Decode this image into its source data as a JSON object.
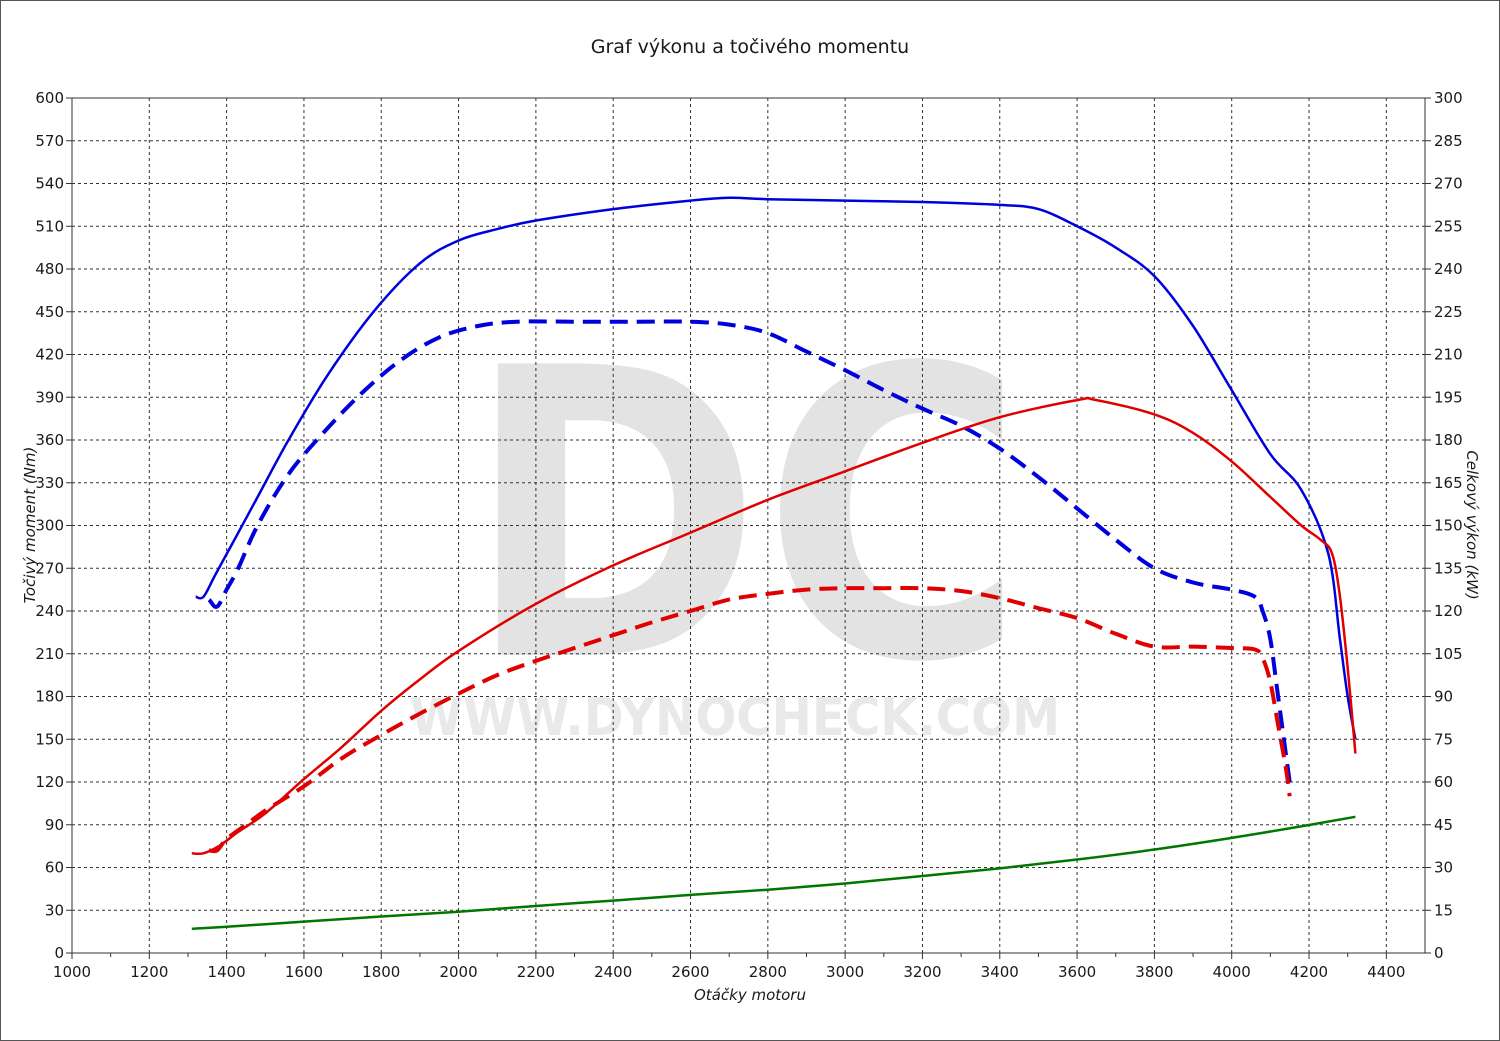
{
  "chart_data": {
    "type": "line",
    "title": "Graf výkonu a točivého momentu",
    "xlabel": "Otáčky motoru",
    "ylabel_left": "Točivý moment (Nm)",
    "ylabel_right": "Celkový výkon (kW)",
    "xlim": [
      1000,
      4500
    ],
    "ylim_left": [
      0,
      600
    ],
    "ylim_right": [
      0,
      300
    ],
    "x_ticks": [
      "1000",
      "1200",
      "1400",
      "1600",
      "1800",
      "2000",
      "2200",
      "2400",
      "2600",
      "2800",
      "3000",
      "3200",
      "3400",
      "3600",
      "3800",
      "4000",
      "4200",
      "4400"
    ],
    "y_ticks_left": [
      "0",
      "30",
      "60",
      "90",
      "120",
      "150",
      "180",
      "210",
      "240",
      "270",
      "300",
      "330",
      "360",
      "390",
      "420",
      "450",
      "480",
      "510",
      "540",
      "570",
      "600"
    ],
    "y_ticks_right": [
      "0",
      "15",
      "30",
      "45",
      "60",
      "75",
      "90",
      "105",
      "120",
      "135",
      "150",
      "165",
      "180",
      "195",
      "210",
      "225",
      "240",
      "255",
      "270",
      "285",
      "300"
    ],
    "grid": true,
    "watermark": {
      "letters": "DC",
      "url": "WWW.DYNOCHECK.COM"
    },
    "series": [
      {
        "color": "#0000dd",
        "dash": "solid",
        "axis": "left",
        "x": [
          1320,
          1340,
          1370,
          1420,
          1480,
          1560,
          1660,
          1780,
          1900,
          2000,
          2100,
          2200,
          2400,
          2600,
          2700,
          2800,
          3000,
          3200,
          3400,
          3500,
          3600,
          3700,
          3800,
          3900,
          4000,
          4100,
          4180,
          4250,
          4280,
          4300,
          4320
        ],
        "y": [
          250,
          250,
          265,
          290,
          320,
          360,
          405,
          450,
          484,
          500,
          508,
          514,
          522,
          528,
          530,
          529,
          528,
          527,
          525,
          522,
          510,
          495,
          475,
          440,
          395,
          350,
          325,
          280,
          220,
          180,
          150
        ]
      },
      {
        "color": "#0000dd",
        "dash": "dashed",
        "axis": "left",
        "x": [
          1355,
          1375,
          1400,
          1430,
          1480,
          1560,
          1650,
          1750,
          1850,
          1950,
          2050,
          2150,
          2300,
          2450,
          2600,
          2700,
          2800,
          2900,
          3000,
          3100,
          3200,
          3300,
          3400,
          3500,
          3600,
          3700,
          3800,
          3900,
          4000,
          4060,
          4080,
          4100,
          4120,
          4140,
          4150
        ],
        "y": [
          248,
          243,
          255,
          270,
          300,
          336,
          365,
          393,
          416,
          432,
          440,
          443,
          443,
          443,
          443,
          441,
          435,
          422,
          409,
          395,
          382,
          370,
          354,
          334,
          312,
          290,
          270,
          260,
          255,
          250,
          240,
          220,
          180,
          140,
          120
        ]
      },
      {
        "color": "#e00000",
        "dash": "solid",
        "axis": "left",
        "x": [
          1310,
          1340,
          1380,
          1430,
          1500,
          1600,
          1700,
          1800,
          1900,
          2000,
          2200,
          2400,
          2600,
          2800,
          3000,
          3200,
          3400,
          3600,
          3650,
          3800,
          3900,
          4000,
          4100,
          4180,
          4230,
          4260,
          4280,
          4300,
          4320
        ],
        "y": [
          70,
          70,
          75,
          85,
          98,
          122,
          145,
          170,
          192,
          212,
          245,
          272,
          295,
          318,
          338,
          358,
          376,
          388,
          388,
          378,
          365,
          345,
          320,
          300,
          290,
          280,
          250,
          200,
          140
        ]
      },
      {
        "color": "#e00000",
        "dash": "dashed",
        "axis": "left",
        "x": [
          1355,
          1375,
          1400,
          1450,
          1500,
          1600,
          1700,
          1800,
          1900,
          2000,
          2100,
          2200,
          2300,
          2400,
          2500,
          2600,
          2700,
          2800,
          2900,
          3000,
          3100,
          3200,
          3300,
          3400,
          3500,
          3600,
          3700,
          3800,
          3900,
          4000,
          4060,
          4080,
          4100,
          4120,
          4140,
          4150
        ],
        "y": [
          72,
          72,
          80,
          90,
          100,
          117,
          137,
          153,
          168,
          182,
          195,
          205,
          214,
          223,
          232,
          240,
          248,
          252,
          255,
          256,
          256,
          256,
          254,
          249,
          242,
          235,
          224,
          215,
          215,
          214,
          213,
          207,
          190,
          160,
          130,
          110
        ]
      },
      {
        "color": "#007700",
        "dash": "solid",
        "axis": "right",
        "x": [
          1310,
          1400,
          1600,
          1800,
          2000,
          2200,
          2400,
          2600,
          2800,
          3000,
          3200,
          3400,
          3600,
          3800,
          4000,
          4200,
          4320
        ],
        "y": [
          8.5,
          9.2,
          11,
          12.8,
          14.5,
          16.5,
          18.4,
          20.4,
          22.2,
          24.4,
          27,
          29.7,
          32.8,
          36.3,
          40.4,
          44.9,
          47.8
        ]
      }
    ]
  }
}
